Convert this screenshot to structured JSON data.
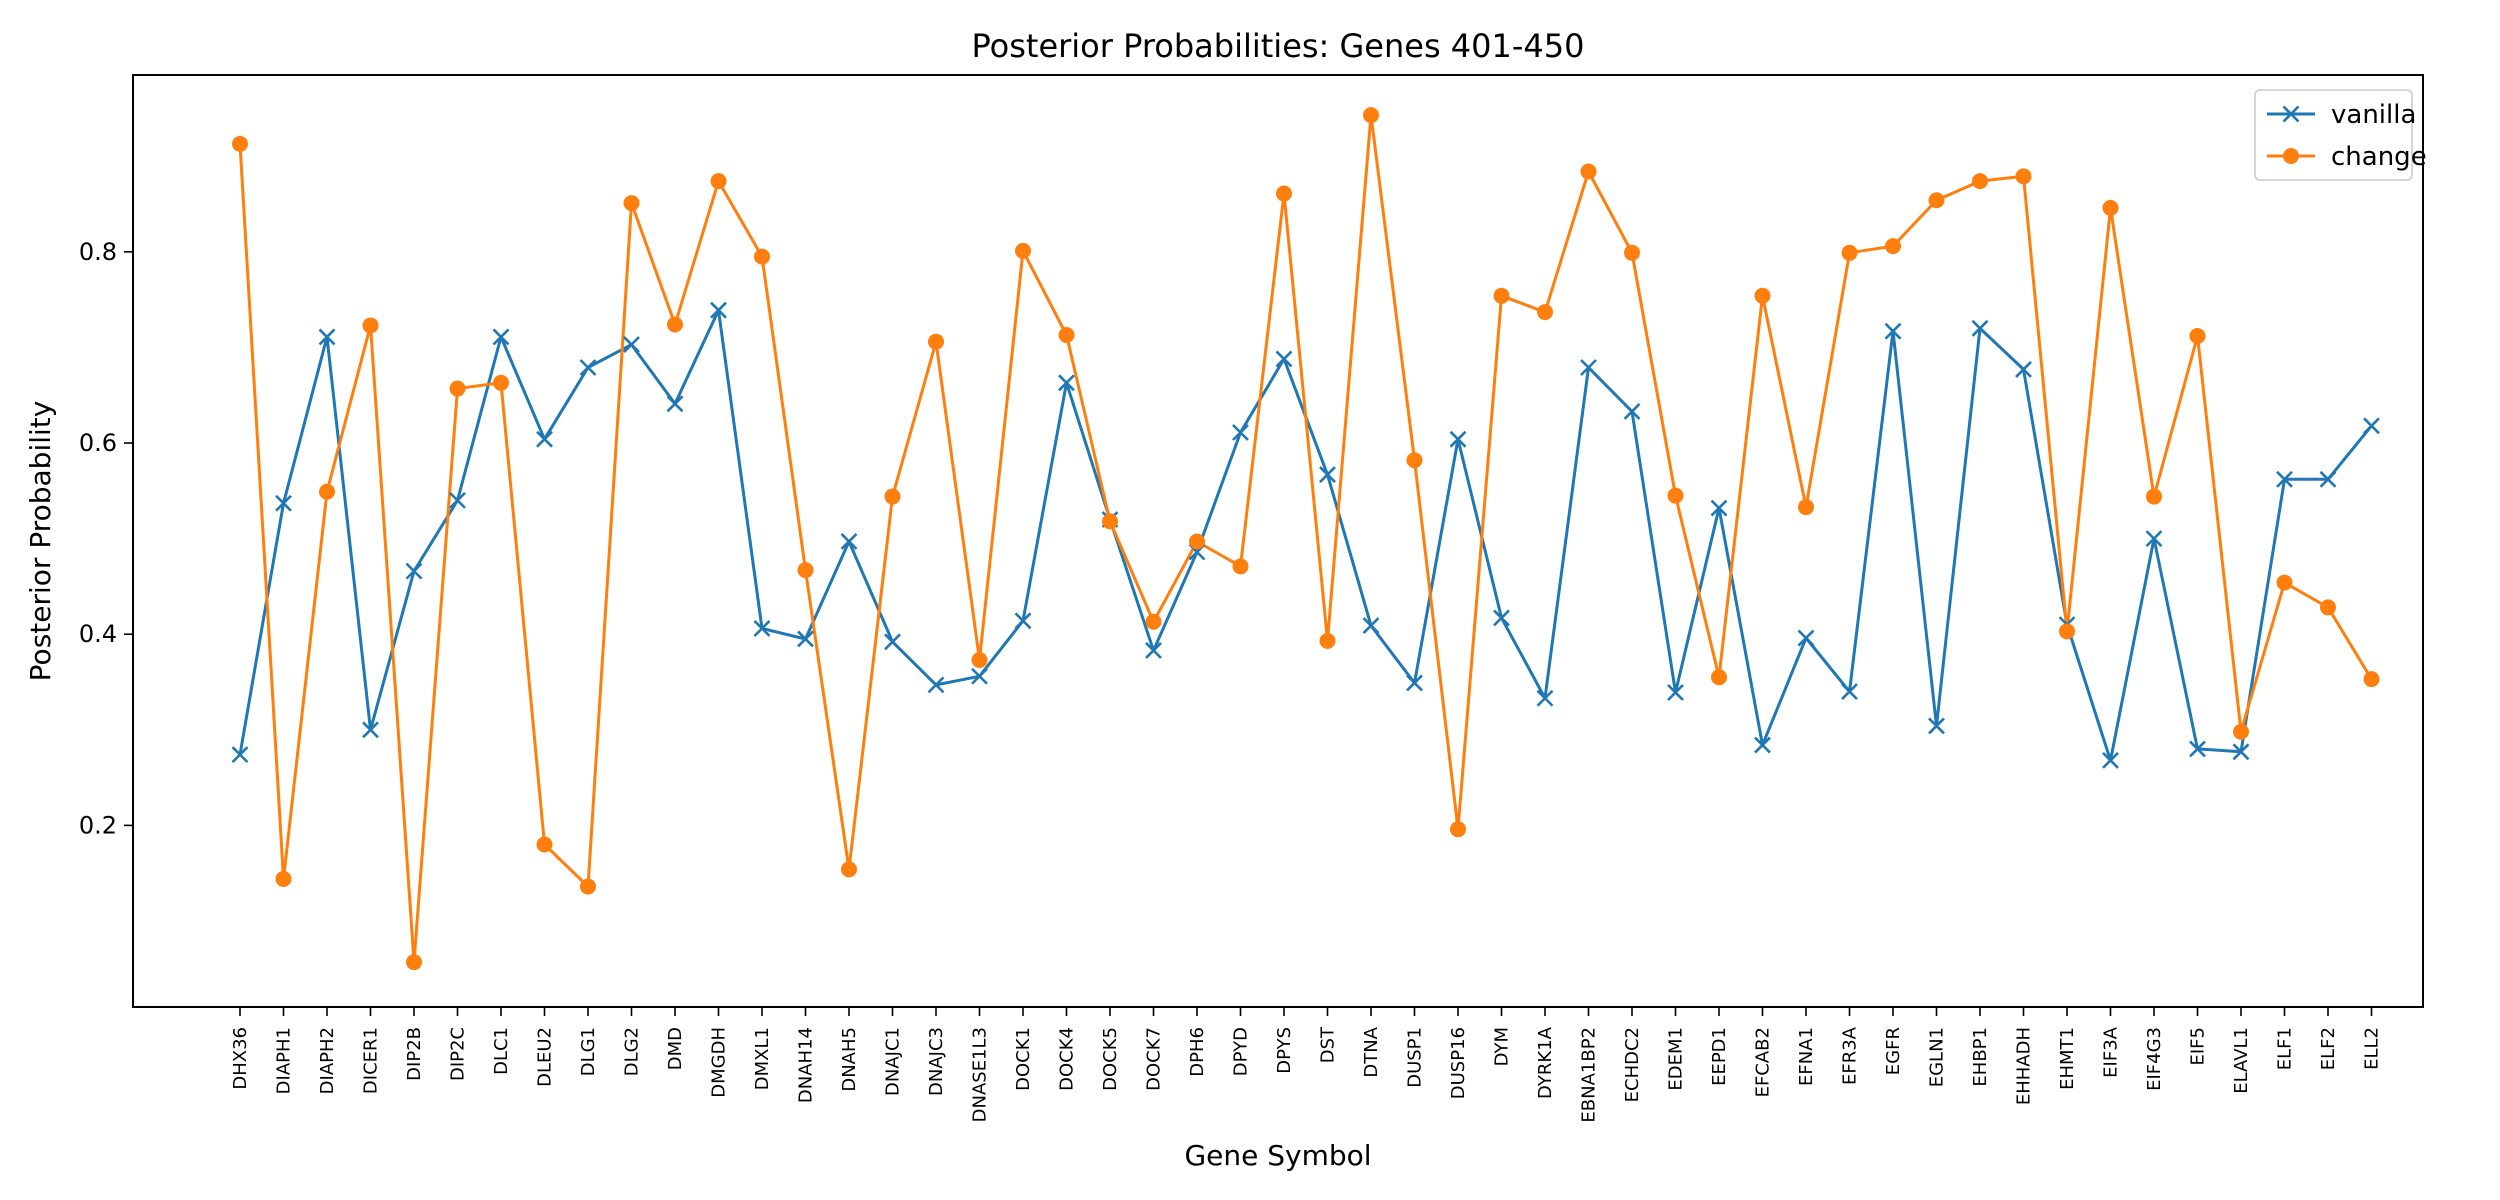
{
  "chart_data": {
    "type": "line",
    "title": "Posterior Probabilities: Genes 401-450",
    "xlabel": "Gene Symbol",
    "ylabel": "Posterior Probability",
    "ylim": [
      0.01,
      0.985
    ],
    "y_ticks": [
      "0.2",
      "0.4",
      "0.6",
      "0.8"
    ],
    "grid": false,
    "legend_position": "top-right",
    "categories": [
      "DHX36",
      "DIAPH1",
      "DIAPH2",
      "DICER1",
      "DIP2B",
      "DIP2C",
      "DLC1",
      "DLEU2",
      "DLG1",
      "DLG2",
      "DMD",
      "DMGDH",
      "DMXL1",
      "DNAH14",
      "DNAH5",
      "DNAJC1",
      "DNAJC3",
      "DNASE1L3",
      "DOCK1",
      "DOCK4",
      "DOCK5",
      "DOCK7",
      "DPH6",
      "DPYD",
      "DPYS",
      "DST",
      "DTNA",
      "DUSP1",
      "DUSP16",
      "DYM",
      "DYRK1A",
      "EBNA1BP2",
      "ECHDC2",
      "EDEM1",
      "EEPD1",
      "EFCAB2",
      "EFNA1",
      "EFR3A",
      "EGFR",
      "EGLN1",
      "EHBP1",
      "EHHADH",
      "EHMT1",
      "EIF3A",
      "EIF4G3",
      "EIF5",
      "ELAVL1",
      "ELF1",
      "ELF2",
      "ELL2"
    ],
    "series": [
      {
        "name": "vanilla",
        "color": "#1f77b4",
        "marker": "x",
        "values": [
          0.274,
          0.537,
          0.711,
          0.3,
          0.466,
          0.54,
          0.711,
          0.604,
          0.679,
          0.703,
          0.641,
          0.739,
          0.406,
          0.395,
          0.497,
          0.392,
          0.347,
          0.356,
          0.414,
          0.663,
          0.52,
          0.383,
          0.486,
          0.611,
          0.688,
          0.567,
          0.409,
          0.349,
          0.604,
          0.417,
          0.333,
          0.679,
          0.633,
          0.339,
          0.532,
          0.284,
          0.396,
          0.34,
          0.717,
          0.304,
          0.72,
          0.677,
          0.41,
          0.268,
          0.5,
          0.28,
          0.277,
          0.562,
          0.562,
          0.618
        ]
      },
      {
        "name": "change",
        "color": "#ff7f0e",
        "marker": "o",
        "values": [
          0.913,
          0.144,
          0.549,
          0.723,
          0.057,
          0.657,
          0.663,
          0.18,
          0.136,
          0.851,
          0.724,
          0.874,
          0.795,
          0.467,
          0.154,
          0.544,
          0.706,
          0.373,
          0.801,
          0.713,
          0.518,
          0.413,
          0.497,
          0.471,
          0.861,
          0.393,
          0.943,
          0.582,
          0.196,
          0.754,
          0.737,
          0.884,
          0.799,
          0.545,
          0.355,
          0.754,
          0.533,
          0.799,
          0.806,
          0.854,
          0.874,
          0.879,
          0.403,
          0.846,
          0.544,
          0.712,
          0.298,
          0.454,
          0.428,
          0.353
        ]
      }
    ]
  }
}
